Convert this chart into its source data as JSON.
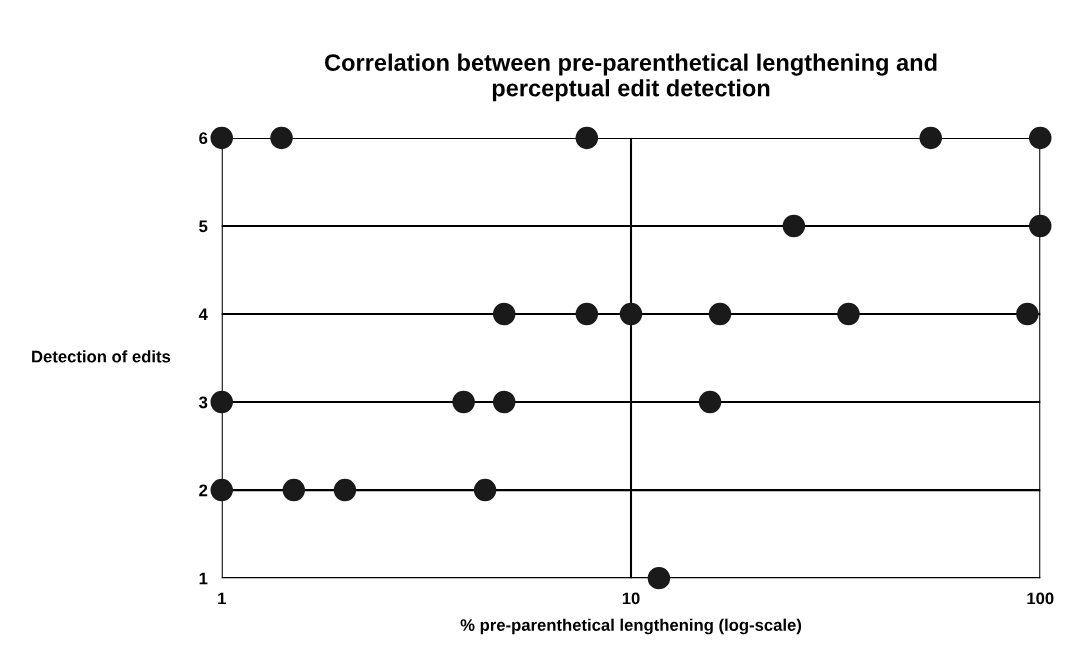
{
  "chart_data": {
    "type": "scatter",
    "title": "Correlation between pre-parenthetical lengthening and\nperceptual edit detection",
    "xlabel": "% pre-parenthetical lengthening (log-scale)",
    "ylabel": "Detection of edits",
    "log": "x",
    "xlim": [
      1,
      100
    ],
    "xticks": [
      1,
      10,
      100
    ],
    "ylim": [
      1,
      6
    ],
    "yticks": [
      1,
      2,
      3,
      4,
      5,
      6
    ],
    "grid": true,
    "marker": "circle",
    "series": [
      {
        "color": "#1a1a1a",
        "x": [
          1,
          1.4,
          7.8,
          54,
          100,
          25,
          100,
          4.9,
          7.8,
          10,
          16.5,
          34,
          93,
          1,
          3.9,
          4.9,
          15.6,
          1,
          1.5,
          2,
          4.4,
          11.7
        ],
        "values": [
          6,
          6,
          6,
          6,
          6,
          5,
          5,
          4,
          4,
          4,
          4,
          4,
          4,
          3,
          3,
          3,
          3,
          2,
          2,
          2,
          2,
          1
        ]
      }
    ]
  }
}
